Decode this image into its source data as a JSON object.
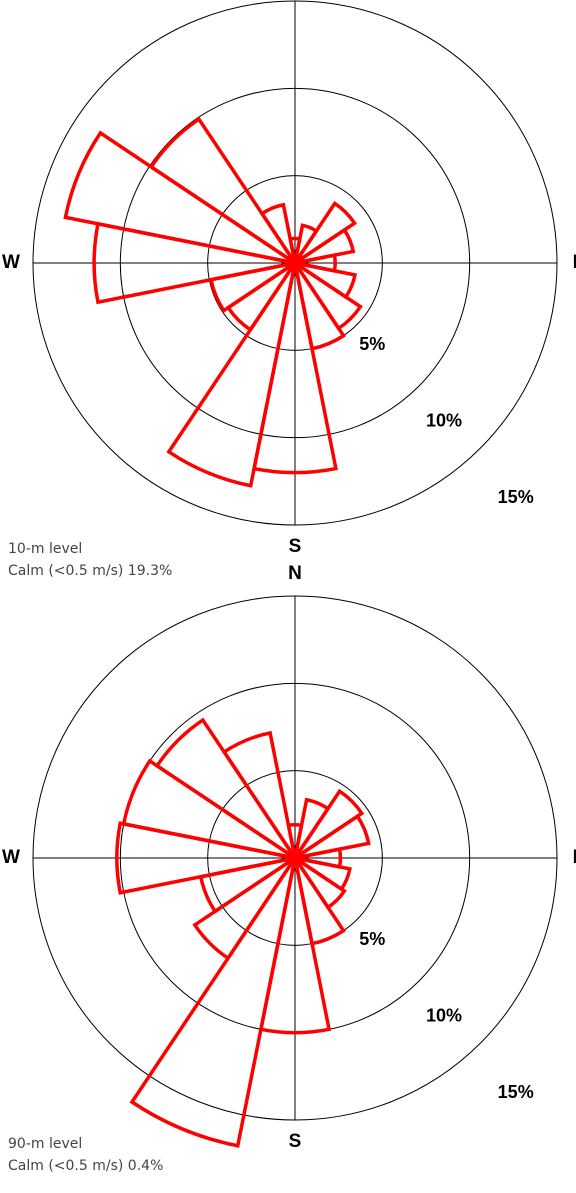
{
  "chart_data": [
    {
      "type": "rose",
      "categories": [
        "N",
        null,
        null,
        null,
        "E",
        null,
        null,
        null,
        "S",
        null,
        null,
        null,
        "W",
        null,
        null,
        null
      ],
      "values": [
        1.4,
        2.2,
        4.1,
        3.4,
        2.3,
        3.5,
        4.5,
        5.0,
        12.0,
        13.0,
        4.6,
        4.9,
        11.5,
        13.4,
        9.9,
        3.4
      ],
      "color": "#ff0000",
      "rlim": [
        0,
        15
      ],
      "rticks": [
        {
          "value": 5,
          "label": "5%"
        },
        {
          "value": 10,
          "label": "10%"
        },
        {
          "value": 15,
          "label": "15%"
        }
      ],
      "annotations": [
        "10-m level",
        "Calm (<0.5 m/s) 19.3%"
      ]
    },
    {
      "type": "rose",
      "categories": [
        "N",
        null,
        null,
        null,
        "E",
        null,
        null,
        null,
        "S",
        null,
        null,
        null,
        "W",
        null,
        null,
        null
      ],
      "values": [
        1.9,
        3.4,
        4.6,
        4.3,
        2.6,
        3.2,
        3.4,
        5.0,
        10.0,
        16.8,
        6.9,
        5.5,
        10.2,
        10.0,
        9.5,
        7.3
      ],
      "color": "#ff0000",
      "rlim": [
        0,
        15
      ],
      "rticks": [
        {
          "value": 5,
          "label": "5%"
        },
        {
          "value": 10,
          "label": "10%"
        },
        {
          "value": 15,
          "label": "15%"
        }
      ],
      "annotations": [
        "90-m level",
        "Calm (<0.5 m/s) 0.4%"
      ]
    }
  ]
}
